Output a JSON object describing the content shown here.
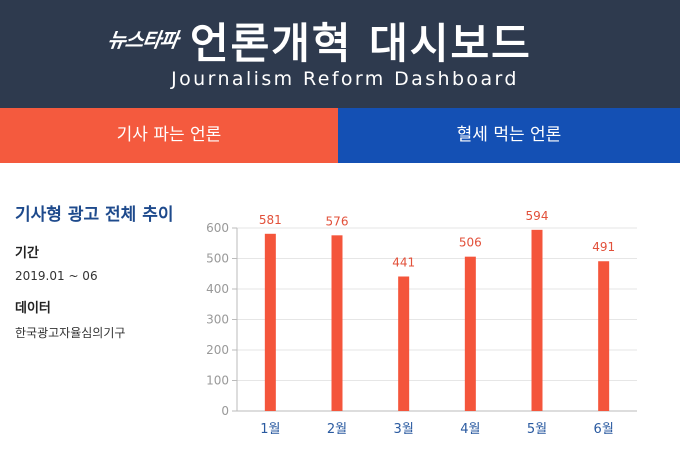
{
  "header": {
    "logo": "뉴스타파",
    "title": "언론개혁 대시보드",
    "subtitle": "Journalism Reform Dashboard"
  },
  "tabs": [
    {
      "label": "기사 파는 언론",
      "color": "#f45a3e",
      "active": true
    },
    {
      "label": "혈세 먹는 언론",
      "color": "#1450b4",
      "active": false
    }
  ],
  "info": {
    "title": "기사형 광고 전체 추이",
    "period_label": "기간",
    "period_value": "2019.01 ~ 06",
    "data_label": "데이터",
    "data_value": "한국광고자율심의기구"
  },
  "chart_data": {
    "type": "bar",
    "categories": [
      "1월",
      "2월",
      "3월",
      "4월",
      "5월",
      "6월"
    ],
    "values": [
      581,
      576,
      441,
      506,
      594,
      491
    ],
    "ylim": [
      0,
      600
    ],
    "yticks": [
      0,
      100,
      200,
      300,
      400,
      500,
      600
    ],
    "grid": true,
    "bar_color": "#f4553b",
    "title": "",
    "xlabel": "",
    "ylabel": ""
  }
}
